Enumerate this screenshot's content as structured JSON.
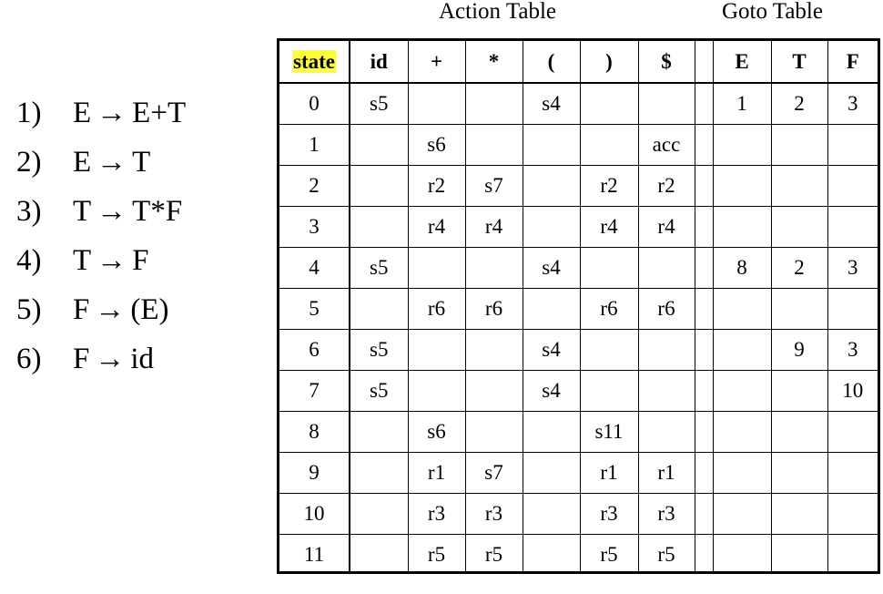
{
  "titles": {
    "action": "Action Table",
    "goto": "Goto Table"
  },
  "arrow": "→",
  "grammar": [
    {
      "num": "1)",
      "lhs": "E",
      "rhs": "E+T"
    },
    {
      "num": "2)",
      "lhs": "E",
      "rhs": "T"
    },
    {
      "num": "3)",
      "lhs": "T",
      "rhs": "T*F"
    },
    {
      "num": "4)",
      "lhs": "T",
      "rhs": "F"
    },
    {
      "num": "5)",
      "lhs": "F",
      "rhs": "(E)"
    },
    {
      "num": "6)",
      "lhs": "F",
      "rhs": "id"
    }
  ],
  "table": {
    "header": {
      "state": "state",
      "actions": [
        "id",
        "+",
        "*",
        "(",
        ")",
        "$"
      ],
      "gotos": [
        "E",
        "T",
        "F"
      ]
    },
    "highlight_color": "#ffff33",
    "rows": [
      {
        "state": "0",
        "actions": [
          "s5",
          "",
          "",
          "s4",
          "",
          ""
        ],
        "gotos": [
          "1",
          "2",
          "3"
        ]
      },
      {
        "state": "1",
        "actions": [
          "",
          "s6",
          "",
          "",
          "",
          "acc"
        ],
        "gotos": [
          "",
          "",
          ""
        ]
      },
      {
        "state": "2",
        "actions": [
          "",
          "r2",
          "s7",
          "",
          "r2",
          "r2"
        ],
        "gotos": [
          "",
          "",
          ""
        ]
      },
      {
        "state": "3",
        "actions": [
          "",
          "r4",
          "r4",
          "",
          "r4",
          "r4"
        ],
        "gotos": [
          "",
          "",
          ""
        ]
      },
      {
        "state": "4",
        "actions": [
          "s5",
          "",
          "",
          "s4",
          "",
          ""
        ],
        "gotos": [
          "8",
          "2",
          "3"
        ]
      },
      {
        "state": "5",
        "actions": [
          "",
          "r6",
          "r6",
          "",
          "r6",
          "r6"
        ],
        "gotos": [
          "",
          "",
          ""
        ]
      },
      {
        "state": "6",
        "actions": [
          "s5",
          "",
          "",
          "s4",
          "",
          ""
        ],
        "gotos": [
          "",
          "9",
          "3"
        ]
      },
      {
        "state": "7",
        "actions": [
          "s5",
          "",
          "",
          "s4",
          "",
          ""
        ],
        "gotos": [
          "",
          "",
          "10"
        ]
      },
      {
        "state": "8",
        "actions": [
          "",
          "s6",
          "",
          "",
          "s11",
          ""
        ],
        "gotos": [
          "",
          "",
          ""
        ]
      },
      {
        "state": "9",
        "actions": [
          "",
          "r1",
          "s7",
          "",
          "r1",
          "r1"
        ],
        "gotos": [
          "",
          "",
          ""
        ]
      },
      {
        "state": "10",
        "actions": [
          "",
          "r3",
          "r3",
          "",
          "r3",
          "r3"
        ],
        "gotos": [
          "",
          "",
          ""
        ]
      },
      {
        "state": "11",
        "actions": [
          "",
          "r5",
          "r5",
          "",
          "r5",
          "r5"
        ],
        "gotos": [
          "",
          "",
          ""
        ]
      }
    ]
  }
}
